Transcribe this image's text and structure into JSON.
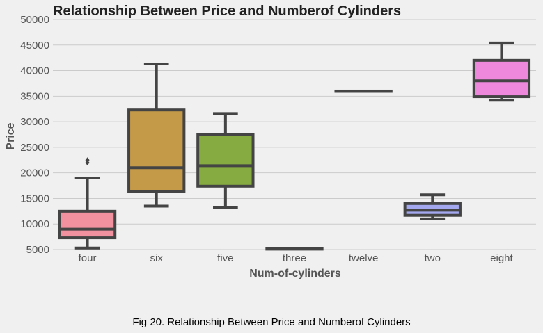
{
  "chart_data": {
    "type": "box",
    "title": "Relationship Between Price and Numberof Cylinders",
    "xlabel": "Num-of-cylinders",
    "ylabel": "Price",
    "ylim": [
      5000,
      50000
    ],
    "yticks": [
      5000,
      10000,
      15000,
      20000,
      25000,
      30000,
      35000,
      40000,
      45000,
      50000
    ],
    "grid": "horizontal",
    "categories": [
      "four",
      "six",
      "five",
      "three",
      "twelve",
      "two",
      "eight"
    ],
    "boxes": [
      {
        "category": "four",
        "min": 5300,
        "q1": 7300,
        "median": 9000,
        "q3": 12500,
        "max": 19000,
        "outliers": [
          22000,
          22500
        ],
        "color": "#f1909f"
      },
      {
        "category": "six",
        "min": 13500,
        "q1": 16300,
        "median": 21000,
        "q3": 32300,
        "max": 41300,
        "outliers": [],
        "color": "#c49a48"
      },
      {
        "category": "five",
        "min": 13200,
        "q1": 17400,
        "median": 21400,
        "q3": 27500,
        "max": 31600,
        "outliers": [],
        "color": "#86ac41"
      },
      {
        "category": "three",
        "min": 5150,
        "q1": 5150,
        "median": 5150,
        "q3": 5150,
        "max": 5150,
        "outliers": [],
        "color": "#3fb39a"
      },
      {
        "category": "twelve",
        "min": 36000,
        "q1": 36000,
        "median": 36000,
        "q3": 36000,
        "max": 36000,
        "outliers": [],
        "color": "#44b3d6"
      },
      {
        "category": "two",
        "min": 11000,
        "q1": 11700,
        "median": 12700,
        "q3": 14000,
        "max": 15700,
        "outliers": [],
        "color": "#a4a9ef"
      },
      {
        "category": "eight",
        "min": 34200,
        "q1": 34900,
        "median": 38000,
        "q3": 42000,
        "max": 45400,
        "outliers": [],
        "color": "#ee88dd"
      }
    ]
  },
  "caption": "Fig 20. Relationship Between Price and Numberof Cylinders"
}
